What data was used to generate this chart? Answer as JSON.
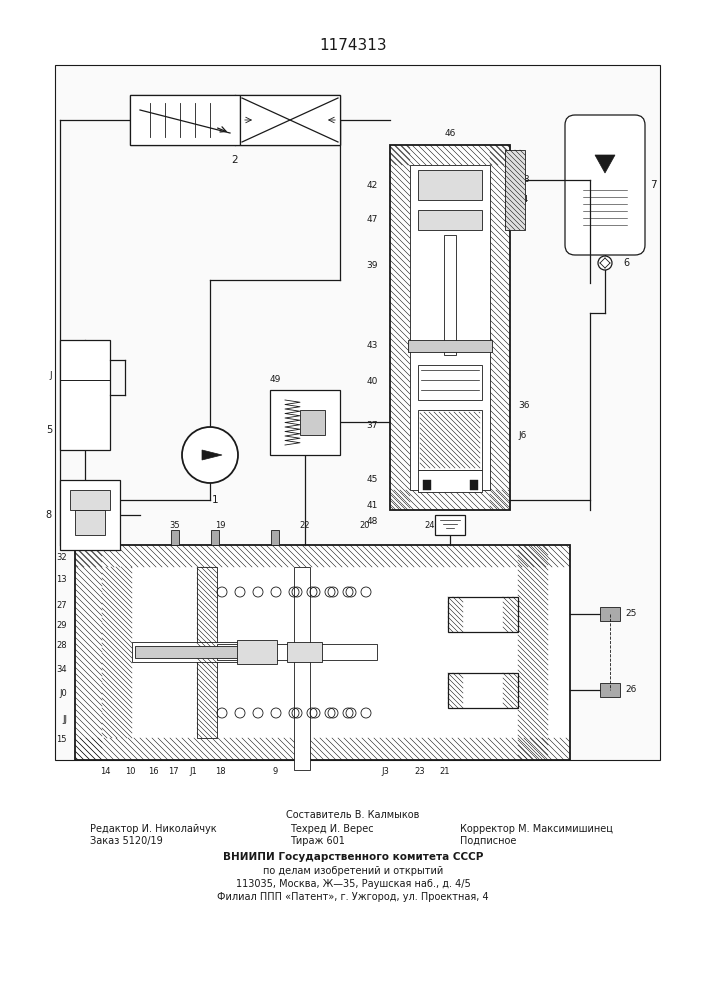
{
  "patent_number": "1174313",
  "bg_color": "#ffffff",
  "line_color": "#1a1a1a",
  "footer_fontsize": 7.0,
  "footer_bold": "ВНИИПИ Государственного комитета СССР",
  "footer_rest": [
    "по делам изобретений и открытий",
    "113035, Москва, Ж—35, Раушская наб., д. 4/5",
    "Филиал ППП «Патент», г. Ужгород, ул. Проектная, 4"
  ]
}
